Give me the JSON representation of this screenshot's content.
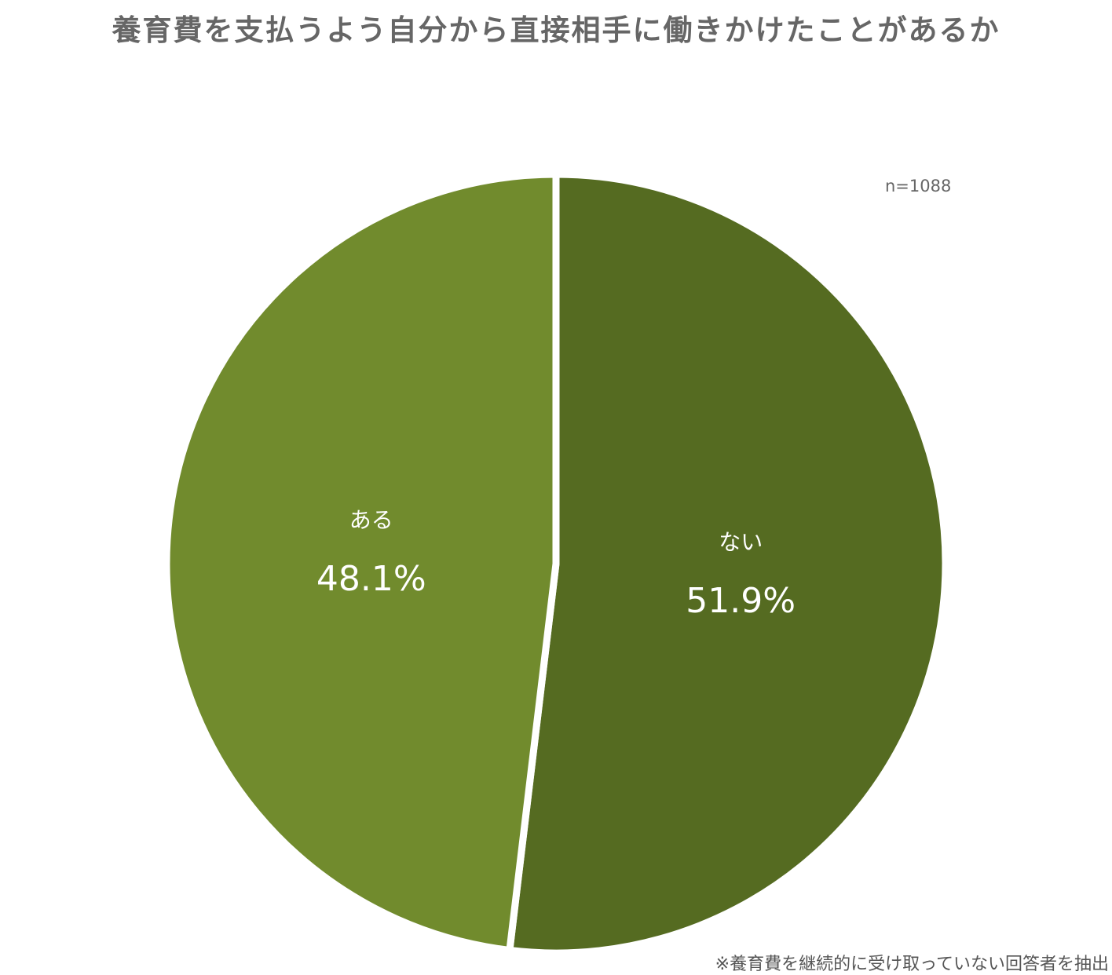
{
  "chart_data": {
    "type": "pie",
    "title": "養育費を支払うよう自分から直接相手に働きかけたことがあるか",
    "sample_size": "n=1088",
    "footnote": "※養育費を継続的に受け取っていない回答者を抽出",
    "slices": [
      {
        "label": "ない",
        "value": 51.9,
        "value_label": "51.9%",
        "color": "#556b21"
      },
      {
        "label": "ある",
        "value": 48.1,
        "value_label": "48.1%",
        "color": "#718b2d"
      }
    ],
    "start": "12 o'clock",
    "direction": "clockwise"
  }
}
